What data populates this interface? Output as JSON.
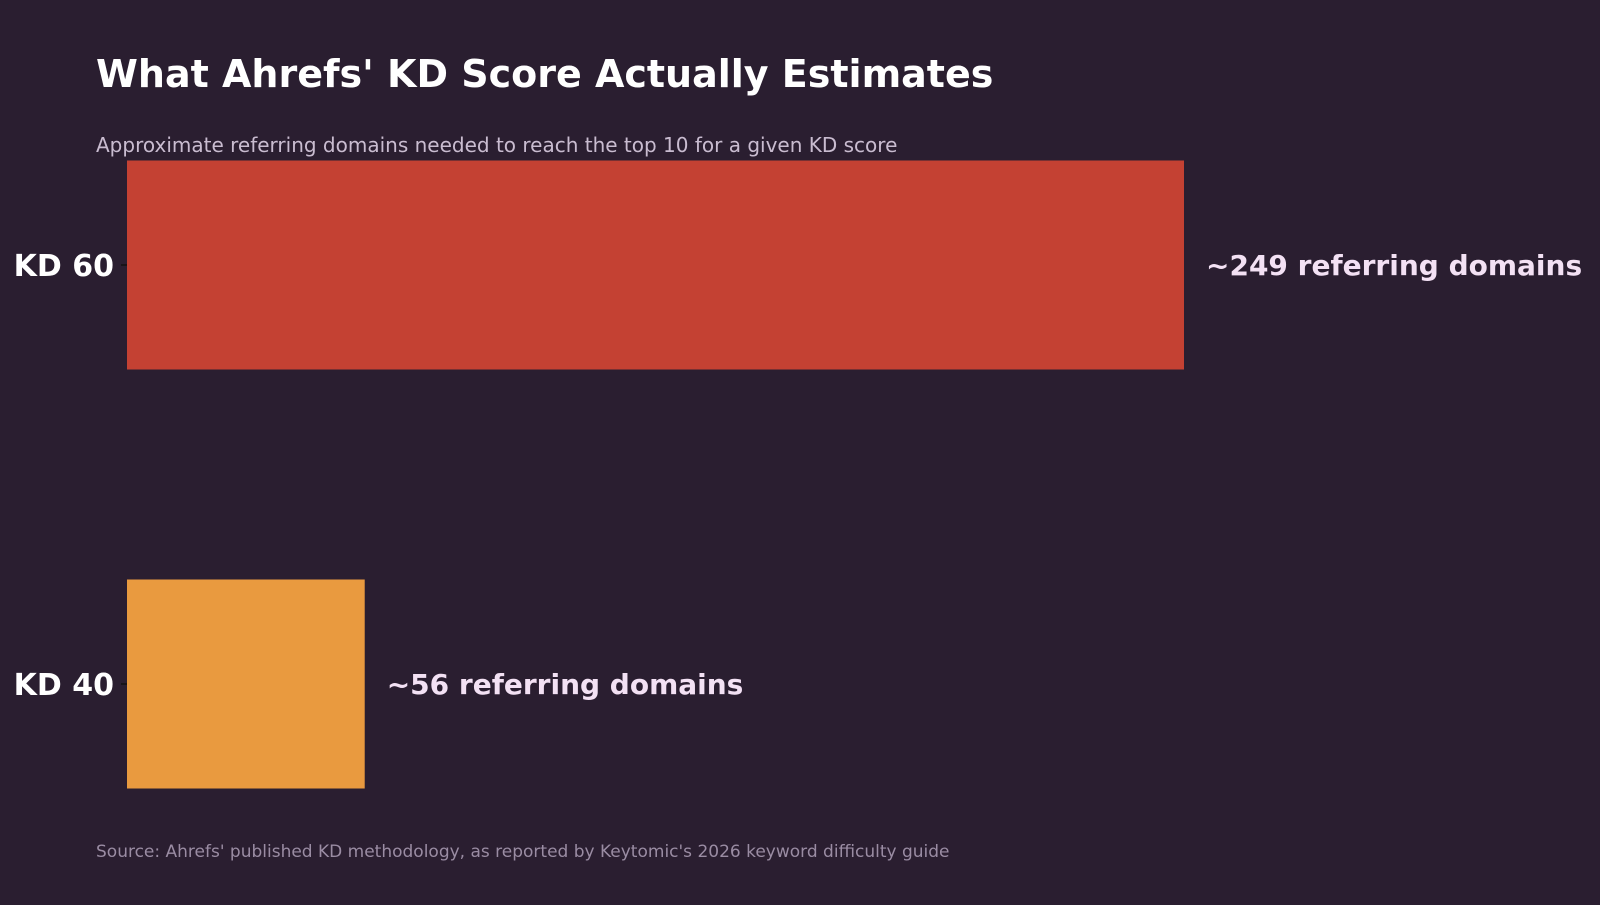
{
  "header": {
    "title": "What Ahrefs' KD Score Actually Estimates",
    "subtitle": "Approximate referring domains needed to reach the top 10 for a given KD score"
  },
  "footer": {
    "source": "Source: Ahrefs' published KD methodology, as reported by Keytomic's 2026 keyword difficulty guide"
  },
  "chart_data": {
    "type": "bar",
    "orientation": "horizontal",
    "title": "What Ahrefs' KD Score Actually Estimates",
    "subtitle": "Approximate referring domains needed to reach the top 10 for a given KD score",
    "xlabel": "",
    "ylabel": "",
    "grid": false,
    "categories": [
      "KD 60",
      "KD 40"
    ],
    "values": [
      249,
      56
    ],
    "value_labels": [
      "~249 referring domains",
      "~56 referring domains"
    ],
    "colors": [
      "#c44133",
      "#e99a3f"
    ],
    "xlim": [
      0,
      249
    ]
  }
}
